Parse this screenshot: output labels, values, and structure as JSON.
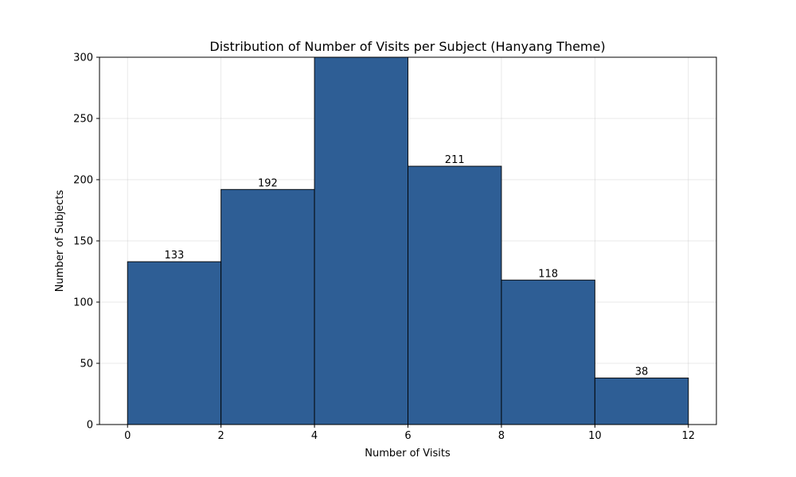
{
  "chart_data": {
    "type": "bar",
    "title": "Distribution of Number of Visits per Subject (Hanyang Theme)",
    "xlabel": "Number of Visits",
    "ylabel": "Number of Subjects",
    "bins": [
      {
        "x0": 0,
        "x1": 2,
        "value": 133,
        "label": "133"
      },
      {
        "x0": 2,
        "x1": 4,
        "value": 192,
        "label": "192"
      },
      {
        "x0": 4,
        "x1": 6,
        "value": 323,
        "label": ""
      },
      {
        "x0": 6,
        "x1": 8,
        "value": 211,
        "label": "211"
      },
      {
        "x0": 8,
        "x1": 10,
        "value": 118,
        "label": "118"
      },
      {
        "x0": 10,
        "x1": 12,
        "value": 38,
        "label": "38"
      }
    ],
    "xlim": [
      -0.6,
      12.6
    ],
    "ylim": [
      0,
      300
    ],
    "xticks": [
      0,
      2,
      4,
      6,
      8,
      10,
      12
    ],
    "yticks": [
      0,
      50,
      100,
      150,
      200,
      250,
      300
    ],
    "grid": true,
    "bar_color": "#2e5e95",
    "edge_color": "#000000"
  }
}
